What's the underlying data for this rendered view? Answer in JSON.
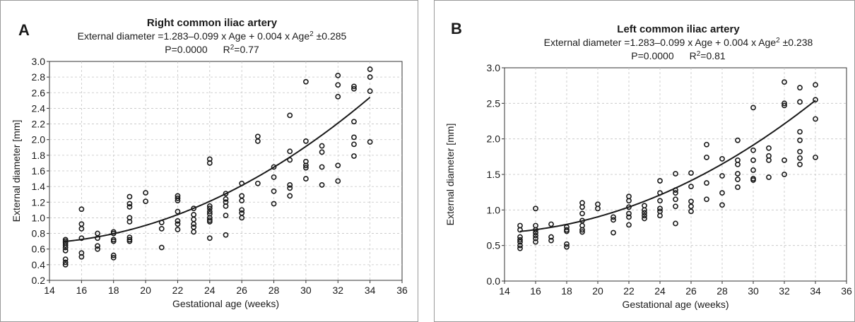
{
  "chart_data": [
    {
      "type": "scatter",
      "panel_letter": "A",
      "title": "Right common iliac artery",
      "equation": {
        "prefix": "External diameter =1.283–0.099 x Age + 0.004 x Age",
        "sup": "2",
        "suffix": " ±0.285"
      },
      "stats": {
        "p_text": "P=0.0000",
        "r_prefix": "R",
        "r_sup": "2",
        "r_suffix": "=0.77"
      },
      "xlabel": "Gestational age (weeks)",
      "ylabel": "External diameter [mm]",
      "xlim": [
        14,
        36
      ],
      "ylim": [
        0.2,
        3.0
      ],
      "xticks": [
        14,
        16,
        18,
        20,
        22,
        24,
        26,
        28,
        30,
        32,
        34,
        36
      ],
      "yticks": [
        0.2,
        0.4,
        0.6,
        0.8,
        1.0,
        1.2,
        1.4,
        1.6,
        1.8,
        2.0,
        2.2,
        2.4,
        2.6,
        2.8,
        3.0
      ],
      "ytick_labels": [
        "0.2",
        "0.4",
        "0.6",
        "0.8",
        "1.0",
        "1.2",
        "1.4",
        "1.6",
        "1.8",
        "2.0",
        "2.2",
        "2.4",
        "2.6",
        "2.8",
        "3.0"
      ],
      "grid": true,
      "fit": {
        "a": 1.283,
        "b": -0.099,
        "c": 0.004,
        "x_range": [
          15,
          34
        ]
      },
      "points": [
        [
          15,
          0.72
        ],
        [
          15,
          0.7
        ],
        [
          15,
          0.68
        ],
        [
          15,
          0.65
        ],
        [
          15,
          0.62
        ],
        [
          15,
          0.58
        ],
        [
          15,
          0.47
        ],
        [
          15,
          0.43
        ],
        [
          15,
          0.4
        ],
        [
          16,
          1.11
        ],
        [
          16,
          0.92
        ],
        [
          16,
          0.86
        ],
        [
          16,
          0.74
        ],
        [
          16,
          0.55
        ],
        [
          16,
          0.5
        ],
        [
          17,
          0.8
        ],
        [
          17,
          0.74
        ],
        [
          17,
          0.64
        ],
        [
          17,
          0.6
        ],
        [
          18,
          0.82
        ],
        [
          18,
          0.8
        ],
        [
          18,
          0.72
        ],
        [
          18,
          0.7
        ],
        [
          18,
          0.52
        ],
        [
          18,
          0.49
        ],
        [
          19,
          1.27
        ],
        [
          19,
          1.18
        ],
        [
          19,
          1.14
        ],
        [
          19,
          1.0
        ],
        [
          19,
          0.95
        ],
        [
          19,
          0.75
        ],
        [
          19,
          0.72
        ],
        [
          19,
          0.7
        ],
        [
          20,
          1.32
        ],
        [
          20,
          1.21
        ],
        [
          21,
          0.94
        ],
        [
          21,
          0.86
        ],
        [
          21,
          0.62
        ],
        [
          22,
          1.28
        ],
        [
          22,
          1.25
        ],
        [
          22,
          1.22
        ],
        [
          22,
          1.08
        ],
        [
          22,
          0.96
        ],
        [
          22,
          0.92
        ],
        [
          22,
          0.85
        ],
        [
          23,
          1.12
        ],
        [
          23,
          1.04
        ],
        [
          23,
          0.98
        ],
        [
          23,
          0.92
        ],
        [
          23,
          0.88
        ],
        [
          23,
          0.82
        ],
        [
          24,
          1.75
        ],
        [
          24,
          1.7
        ],
        [
          24,
          1.15
        ],
        [
          24,
          1.12
        ],
        [
          24,
          1.08
        ],
        [
          24,
          1.05
        ],
        [
          24,
          1.0
        ],
        [
          24,
          0.97
        ],
        [
          24,
          0.95
        ],
        [
          24,
          0.74
        ],
        [
          25,
          1.31
        ],
        [
          25,
          1.24
        ],
        [
          25,
          1.2
        ],
        [
          25,
          1.15
        ],
        [
          25,
          1.03
        ],
        [
          25,
          0.78
        ],
        [
          26,
          1.44
        ],
        [
          26,
          1.28
        ],
        [
          26,
          1.22
        ],
        [
          26,
          1.1
        ],
        [
          26,
          1.06
        ],
        [
          26,
          1.0
        ],
        [
          27,
          2.04
        ],
        [
          27,
          1.98
        ],
        [
          27,
          1.44
        ],
        [
          28,
          1.65
        ],
        [
          28,
          1.52
        ],
        [
          28,
          1.34
        ],
        [
          28,
          1.18
        ],
        [
          29,
          2.31
        ],
        [
          29,
          1.85
        ],
        [
          29,
          1.74
        ],
        [
          29,
          1.42
        ],
        [
          29,
          1.38
        ],
        [
          29,
          1.28
        ],
        [
          30,
          2.74
        ],
        [
          30,
          1.98
        ],
        [
          30,
          1.72
        ],
        [
          30,
          1.67
        ],
        [
          30,
          1.64
        ],
        [
          30,
          1.5
        ],
        [
          31,
          1.92
        ],
        [
          31,
          1.84
        ],
        [
          31,
          1.65
        ],
        [
          31,
          1.42
        ],
        [
          32,
          2.82
        ],
        [
          32,
          2.7
        ],
        [
          32,
          2.55
        ],
        [
          32,
          1.67
        ],
        [
          32,
          1.47
        ],
        [
          33,
          2.68
        ],
        [
          33,
          2.65
        ],
        [
          33,
          2.23
        ],
        [
          33,
          2.03
        ],
        [
          33,
          1.94
        ],
        [
          33,
          1.79
        ],
        [
          34,
          2.9
        ],
        [
          34,
          2.8
        ],
        [
          34,
          2.62
        ],
        [
          34,
          1.97
        ]
      ]
    },
    {
      "type": "scatter",
      "panel_letter": "B",
      "title": "Left common iliac artery",
      "equation": {
        "prefix": "External diameter =1.283–0.099 x Age + 0.004 x Age",
        "sup": "2",
        "suffix": " ±0.238"
      },
      "stats": {
        "p_text": "P=0.0000",
        "r_prefix": "R",
        "r_sup": "2",
        "r_suffix": "=0.81"
      },
      "xlabel": "Gestational age (weeks)",
      "ylabel": "External diameter [mm]",
      "xlim": [
        14,
        36
      ],
      "ylim": [
        0.0,
        3.0
      ],
      "xticks": [
        14,
        16,
        18,
        20,
        22,
        24,
        26,
        28,
        30,
        32,
        34,
        36
      ],
      "yticks": [
        0.0,
        0.5,
        1.0,
        1.5,
        2.0,
        2.5,
        3.0
      ],
      "ytick_labels": [
        "0.0",
        "0.5",
        "1.0",
        "1.5",
        "2.0",
        "2.5",
        "3.0"
      ],
      "grid": true,
      "fit": {
        "a": 1.283,
        "b": -0.099,
        "c": 0.004,
        "x_range": [
          15,
          34
        ]
      },
      "points": [
        [
          15,
          0.78
        ],
        [
          15,
          0.72
        ],
        [
          15,
          0.62
        ],
        [
          15,
          0.58
        ],
        [
          15,
          0.55
        ],
        [
          15,
          0.5
        ],
        [
          15,
          0.46
        ],
        [
          16,
          1.02
        ],
        [
          16,
          0.78
        ],
        [
          16,
          0.72
        ],
        [
          16,
          0.68
        ],
        [
          16,
          0.64
        ],
        [
          16,
          0.6
        ],
        [
          16,
          0.55
        ],
        [
          17,
          0.8
        ],
        [
          17,
          0.62
        ],
        [
          17,
          0.57
        ],
        [
          18,
          0.76
        ],
        [
          18,
          0.72
        ],
        [
          18,
          0.7
        ],
        [
          18,
          0.52
        ],
        [
          18,
          0.48
        ],
        [
          19,
          1.1
        ],
        [
          19,
          1.04
        ],
        [
          19,
          0.95
        ],
        [
          19,
          0.85
        ],
        [
          19,
          0.78
        ],
        [
          19,
          0.72
        ],
        [
          19,
          0.69
        ],
        [
          20,
          1.08
        ],
        [
          20,
          1.02
        ],
        [
          21,
          0.9
        ],
        [
          21,
          0.86
        ],
        [
          21,
          0.68
        ],
        [
          22,
          1.19
        ],
        [
          22,
          1.13
        ],
        [
          22,
          1.04
        ],
        [
          22,
          0.95
        ],
        [
          22,
          0.9
        ],
        [
          22,
          0.79
        ],
        [
          23,
          1.06
        ],
        [
          23,
          1.0
        ],
        [
          23,
          0.96
        ],
        [
          23,
          0.92
        ],
        [
          23,
          0.88
        ],
        [
          24,
          1.41
        ],
        [
          24,
          1.24
        ],
        [
          24,
          1.13
        ],
        [
          24,
          1.02
        ],
        [
          24,
          0.98
        ],
        [
          24,
          0.92
        ],
        [
          25,
          1.51
        ],
        [
          25,
          1.28
        ],
        [
          25,
          1.24
        ],
        [
          25,
          1.15
        ],
        [
          25,
          1.05
        ],
        [
          25,
          0.81
        ],
        [
          26,
          1.52
        ],
        [
          26,
          1.33
        ],
        [
          26,
          1.12
        ],
        [
          26,
          1.05
        ],
        [
          26,
          0.98
        ],
        [
          27,
          1.92
        ],
        [
          27,
          1.74
        ],
        [
          27,
          1.38
        ],
        [
          27,
          1.15
        ],
        [
          28,
          1.72
        ],
        [
          28,
          1.48
        ],
        [
          28,
          1.24
        ],
        [
          28,
          1.07
        ],
        [
          29,
          1.98
        ],
        [
          29,
          1.7
        ],
        [
          29,
          1.64
        ],
        [
          29,
          1.51
        ],
        [
          29,
          1.43
        ],
        [
          29,
          1.32
        ],
        [
          30,
          2.44
        ],
        [
          30,
          1.84
        ],
        [
          30,
          1.7
        ],
        [
          30,
          1.56
        ],
        [
          30,
          1.44
        ],
        [
          30,
          1.42
        ],
        [
          31,
          1.87
        ],
        [
          31,
          1.76
        ],
        [
          31,
          1.7
        ],
        [
          31,
          1.46
        ],
        [
          32,
          2.8
        ],
        [
          32,
          2.5
        ],
        [
          32,
          2.47
        ],
        [
          32,
          1.7
        ],
        [
          32,
          1.5
        ],
        [
          33,
          2.72
        ],
        [
          33,
          2.52
        ],
        [
          33,
          2.1
        ],
        [
          33,
          1.98
        ],
        [
          33,
          1.82
        ],
        [
          33,
          1.73
        ],
        [
          33,
          1.64
        ],
        [
          34,
          2.76
        ],
        [
          34,
          2.55
        ],
        [
          34,
          2.28
        ],
        [
          34,
          1.74
        ]
      ]
    }
  ]
}
